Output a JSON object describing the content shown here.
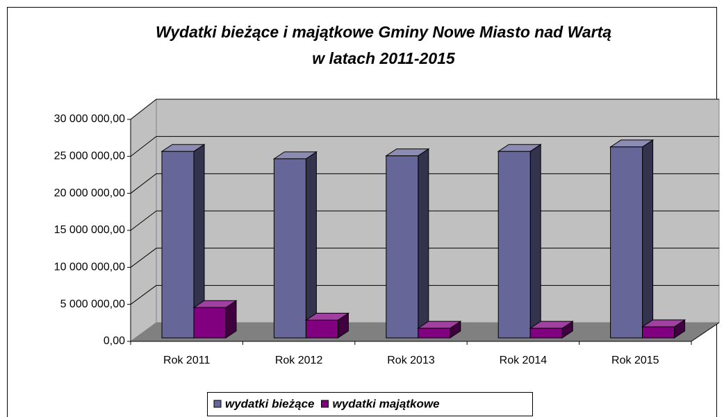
{
  "chart_data": {
    "type": "bar3d",
    "title": [
      "Wydatki bieżące i majątkowe Gminy Nowe Miasto nad Wartą",
      "w latach 2011-2015"
    ],
    "categories": [
      "Rok 2011",
      "Rok 2012",
      "Rok 2013",
      "Rok 2014",
      "Rok 2015"
    ],
    "series": [
      {
        "name": "wydatki bieżące",
        "color": "#666699",
        "values": [
          25200000,
          24200000,
          24600000,
          25200000,
          25800000
        ]
      },
      {
        "name": "wydatki majątkowe",
        "color": "#800080",
        "values": [
          4100000,
          2400000,
          1300000,
          1300000,
          1500000
        ]
      }
    ],
    "ylim": [
      0,
      30000000
    ],
    "yticks": [
      {
        "value": 0,
        "label": "0,00"
      },
      {
        "value": 5000000,
        "label": "5 000 000,00"
      },
      {
        "value": 10000000,
        "label": "10 000 000,00"
      },
      {
        "value": 15000000,
        "label": "15 000 000,00"
      },
      {
        "value": 20000000,
        "label": "20 000 000,00"
      },
      {
        "value": 25000000,
        "label": "25 000 000,00"
      },
      {
        "value": 30000000,
        "label": "30 000 000,00"
      }
    ],
    "grid": true,
    "legend": "bottom"
  }
}
